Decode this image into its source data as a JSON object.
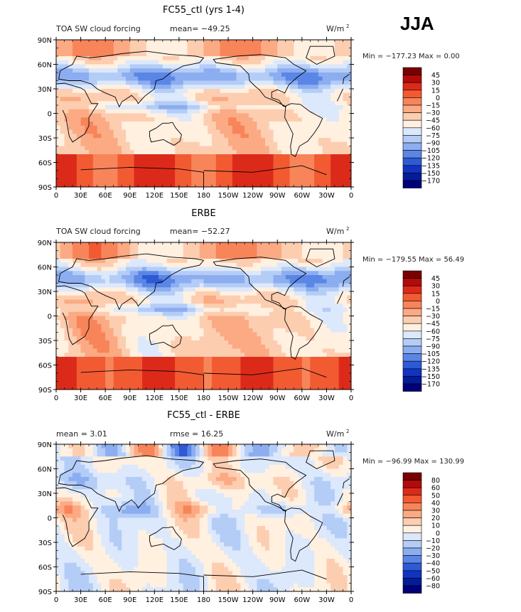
{
  "season": "JJA",
  "chart_data": [
    {
      "type": "heatmap",
      "title": "FC55_ctl (yrs 1-4)",
      "left_label": "TOA SW cloud forcing",
      "stat_line": "mean= −49.25",
      "units_base": "W/m",
      "units_exp": "2",
      "minmax": "Min = −177.23 Max =    0.00",
      "lat_ticks": [
        "90N",
        "60N",
        "30N",
        "0",
        "30S",
        "60S",
        "90S"
      ],
      "lon_ticks": [
        "0",
        "30E",
        "60E",
        "90E",
        "120E",
        "150E",
        "180",
        "150W",
        "120W",
        "90W",
        "60W",
        "30W",
        "0"
      ],
      "colorbar_levels": [
        "45",
        "30",
        "15",
        "0",
        "−15",
        "−30",
        "−45",
        "−60",
        "−75",
        "−90",
        "−105",
        "−120",
        "−135",
        "−150",
        "−170"
      ],
      "colorbar_colors": [
        "#7a0000",
        "#b40a0a",
        "#dc2a1a",
        "#f25a32",
        "#f8845a",
        "#fbaa84",
        "#fdcdb0",
        "#fff0e0",
        "#dce8fb",
        "#b4cdf7",
        "#8cadf0",
        "#5a86e6",
        "#2f5ad6",
        "#1232c0",
        "#031c9a",
        "#00007a"
      ],
      "field": "fc55"
    },
    {
      "type": "heatmap",
      "title": "ERBE",
      "left_label": "TOA SW cloud forcing",
      "stat_line": "mean= −52.27",
      "units_base": "W/m",
      "units_exp": "2",
      "minmax": "Min = −179.55 Max =   56.49",
      "lat_ticks": [
        "90N",
        "60N",
        "30N",
        "0",
        "30S",
        "60S",
        "90S"
      ],
      "lon_ticks": [
        "0",
        "30E",
        "60E",
        "90E",
        "120E",
        "150E",
        "180",
        "150W",
        "120W",
        "90W",
        "60W",
        "30W",
        "0"
      ],
      "colorbar_levels": [
        "45",
        "30",
        "15",
        "0",
        "−15",
        "−30",
        "−45",
        "−60",
        "−75",
        "−90",
        "−105",
        "−120",
        "−135",
        "−150",
        "−170"
      ],
      "colorbar_colors": [
        "#7a0000",
        "#b40a0a",
        "#dc2a1a",
        "#f25a32",
        "#f8845a",
        "#fbaa84",
        "#fdcdb0",
        "#fff0e0",
        "#dce8fb",
        "#b4cdf7",
        "#8cadf0",
        "#5a86e6",
        "#2f5ad6",
        "#1232c0",
        "#031c9a",
        "#00007a"
      ],
      "field": "erbe"
    },
    {
      "type": "heatmap",
      "title": "FC55_ctl - ERBE",
      "left_label": "mean =     3.01",
      "stat_line": "rmse =   16.25",
      "units_base": "W/m",
      "units_exp": "2",
      "minmax": "Min = −96.99 Max =  130.99",
      "lat_ticks": [
        "90N",
        "60N",
        "30N",
        "0",
        "30S",
        "60S",
        "90S"
      ],
      "lon_ticks": [
        "0",
        "30E",
        "60E",
        "90E",
        "120E",
        "150E",
        "180",
        "150W",
        "120W",
        "90W",
        "60W",
        "30W",
        "0"
      ],
      "colorbar_levels": [
        "80",
        "60",
        "50",
        "40",
        "30",
        "20",
        "10",
        "0",
        "−10",
        "−20",
        "−30",
        "−40",
        "−50",
        "−60",
        "−80"
      ],
      "colorbar_colors": [
        "#7a0000",
        "#b40a0a",
        "#dc2a1a",
        "#f25a32",
        "#f8845a",
        "#fbaa84",
        "#fdcdb0",
        "#fff0e0",
        "#dce8fb",
        "#b4cdf7",
        "#8cadf0",
        "#5a86e6",
        "#2f5ad6",
        "#1232c0",
        "#031c9a",
        "#00007a"
      ],
      "field": "diff"
    }
  ]
}
